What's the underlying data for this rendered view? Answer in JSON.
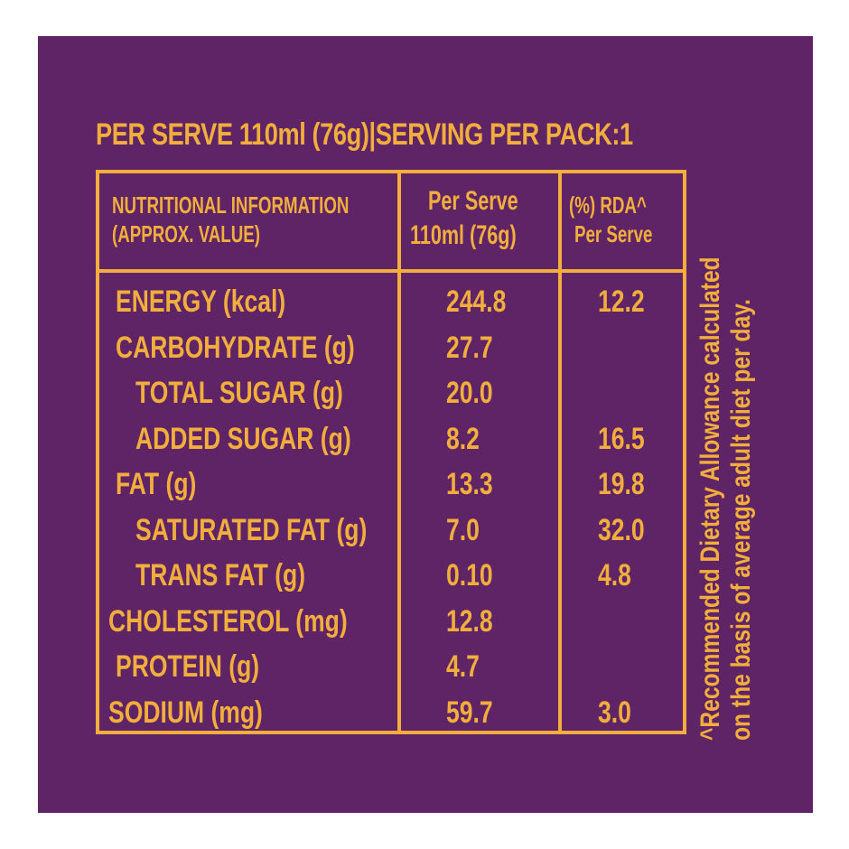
{
  "headline": "PER SERVE 110ml (76g)|SERVING PER PACK:1",
  "header": {
    "col1_line1": "NUTRITIONAL INFORMATION",
    "col1_line2": "(APPROX. VALUE)",
    "col2_line1": "Per Serve",
    "col2_line2": "110ml (76g)",
    "col3_line1": "(%) RDA^",
    "col3_line2": "Per Serve"
  },
  "rows": [
    {
      "name": "ENERGY (kcal)",
      "per_serve": "244.8",
      "rda": "12.2"
    },
    {
      "name": "CARBOHYDRATE (g)",
      "per_serve": "27.7",
      "rda": ""
    },
    {
      "name": "TOTAL SUGAR (g)",
      "per_serve": "20.0",
      "rda": ""
    },
    {
      "name": "ADDED SUGAR (g)",
      "per_serve": "8.2",
      "rda": "16.5"
    },
    {
      "name": "FAT (g)",
      "per_serve": "13.3",
      "rda": "19.8"
    },
    {
      "name": "SATURATED FAT (g)",
      "per_serve": "7.0",
      "rda": "32.0"
    },
    {
      "name": "TRANS FAT (g)",
      "per_serve": "0.10",
      "rda": "4.8"
    },
    {
      "name": "CHOLESTEROL (mg)",
      "per_serve": "12.8",
      "rda": ""
    },
    {
      "name": "PROTEIN (g)",
      "per_serve": "4.7",
      "rda": ""
    },
    {
      "name": "SODIUM (mg)",
      "per_serve": "59.7",
      "rda": "3.0"
    }
  ],
  "footnote_line1": "^Recommended Dietary Allowance calculated",
  "footnote_line2": "on the basis of average adult diet per day.",
  "colors": {
    "background": "#5e2466",
    "text": "#f2ae3c"
  }
}
